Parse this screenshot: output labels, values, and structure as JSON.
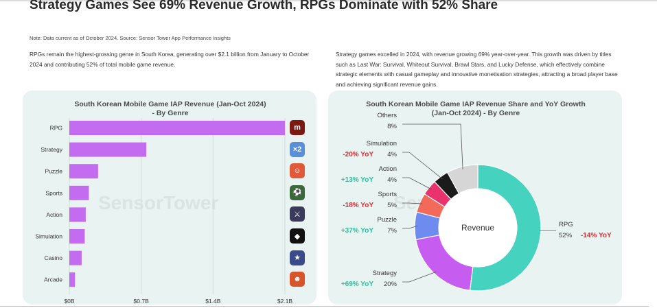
{
  "title": "Strategy Games See 69% Revenue Growth, RPGs Dominate with 52% Share",
  "note": "Note: Data current as of October 2024. Source: Sensor Tower App Performance Insights",
  "left_text": "RPGs remain the highest-grossing genre in South Korea, generating over $2.1 billion from January to October 2024 and contributing 52% of total mobile game revenue.",
  "right_text": "Strategy games excelled in 2024, with revenue growing 69% year-over-year. This growth was driven by titles such as Last War: Survival, Whiteout Survival, Brawl Stars, and Lucky Defense, which effectively combine strategic elements with casual gameplay and innovative monetisation strategies, attracting a broad player base and achieving significant revenue gains.",
  "watermark": "SensorTower",
  "colors": {
    "bar": "#c36cf0",
    "rpg": "#45d3bf",
    "strategy": "#c75cf0",
    "puzzle": "#6e8cf0",
    "sports": "#f26a5a",
    "action": "#e8336e",
    "simulation": "#1b1b1b",
    "others": "#d6d6d6",
    "positive": "#2ebd9c",
    "negative": "#e0282e"
  },
  "game_icons": [
    {
      "name": "rpg-game-icon",
      "glyph": "m",
      "color": "#7a1a12"
    },
    {
      "name": "strategy-game-icon",
      "glyph": "×2",
      "color": "#5a8fd8"
    },
    {
      "name": "puzzle-game-icon",
      "glyph": "☺",
      "color": "#e05a3a"
    },
    {
      "name": "sports-game-icon",
      "glyph": "⚽",
      "color": "#3a6a3a"
    },
    {
      "name": "action-game-icon",
      "glyph": "⚔",
      "color": "#3a3a5a"
    },
    {
      "name": "simulation-game-icon",
      "glyph": "◆",
      "color": "#111111"
    },
    {
      "name": "casino-game-icon",
      "glyph": "★",
      "color": "#3a4a8a"
    },
    {
      "name": "arcade-game-icon",
      "glyph": "☻",
      "color": "#d8542a"
    }
  ],
  "chart_data": [
    {
      "type": "bar",
      "orientation": "horizontal",
      "title": "South Korean Mobile Game IAP Revenue (Jan-Oct 2024)",
      "subtitle": "- By Genre",
      "categories": [
        "RPG",
        "Strategy",
        "Puzzle",
        "Sports",
        "Action",
        "Simulation",
        "Casino",
        "Arcade"
      ],
      "values": [
        2.1,
        0.75,
        0.28,
        0.19,
        0.16,
        0.15,
        0.12,
        0.055
      ],
      "unit": "$B",
      "xlim": [
        0,
        2.1
      ],
      "xticks": [
        "$0B",
        "$0.7B",
        "$1.4B",
        "$2.1B"
      ],
      "grid": true
    },
    {
      "type": "pie",
      "variant": "donut",
      "title": "South Korean Mobile Game IAP Revenue Share and YoY Growth",
      "subtitle": "(Jan-Oct 2024) - By Genre",
      "center_label": "Revenue",
      "slices": [
        {
          "label": "RPG",
          "share": 52,
          "share_text": "52%",
          "yoy": "-14% YoY",
          "yoy_sign": "negative"
        },
        {
          "label": "Strategy",
          "share": 20,
          "share_text": "20%",
          "yoy": "+69% YoY",
          "yoy_sign": "positive"
        },
        {
          "label": "Puzzle",
          "share": 7,
          "share_text": "7%",
          "yoy": "+37% YoY",
          "yoy_sign": "positive"
        },
        {
          "label": "Sports",
          "share": 5,
          "share_text": "5%",
          "yoy": "-18% YoY",
          "yoy_sign": "negative"
        },
        {
          "label": "Action",
          "share": 4,
          "share_text": "4%",
          "yoy": "+13% YoY",
          "yoy_sign": "positive"
        },
        {
          "label": "Simulation",
          "share": 4,
          "share_text": "4%",
          "yoy": "-20% YoY",
          "yoy_sign": "negative"
        },
        {
          "label": "Others",
          "share": 8,
          "share_text": "8%",
          "yoy": "",
          "yoy_sign": ""
        }
      ]
    }
  ]
}
